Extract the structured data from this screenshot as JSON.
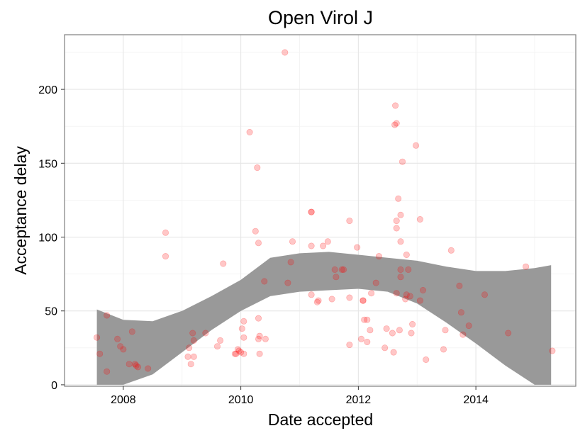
{
  "chart_data": {
    "type": "scatter",
    "title": "Open Virol J",
    "xlabel": "Date accepted",
    "ylabel": "Acceptance delay",
    "xlim": [
      2007.0,
      2015.7
    ],
    "ylim": [
      -1,
      237
    ],
    "x_ticks": [
      {
        "value": 2008,
        "label": "2008"
      },
      {
        "value": 2010,
        "label": "2010"
      },
      {
        "value": 2012,
        "label": "2012"
      },
      {
        "value": 2014,
        "label": "2014"
      }
    ],
    "y_ticks": [
      {
        "value": 0,
        "label": "0"
      },
      {
        "value": 50,
        "label": "50"
      },
      {
        "value": 100,
        "label": "100"
      },
      {
        "value": 150,
        "label": "150"
      },
      {
        "value": 200,
        "label": "200"
      }
    ],
    "grid": true,
    "point_color": "#ff0000",
    "band_color": "#999999",
    "points": [
      [
        2007.55,
        32
      ],
      [
        2007.6,
        21
      ],
      [
        2007.72,
        9
      ],
      [
        2007.72,
        47
      ],
      [
        2007.9,
        31
      ],
      [
        2007.95,
        26
      ],
      [
        2008.0,
        24
      ],
      [
        2008.1,
        14
      ],
      [
        2008.15,
        36
      ],
      [
        2008.2,
        14
      ],
      [
        2008.22,
        13
      ],
      [
        2008.25,
        12
      ],
      [
        2008.42,
        11
      ],
      [
        2008.72,
        103
      ],
      [
        2008.72,
        87
      ],
      [
        2009.1,
        19
      ],
      [
        2009.12,
        25
      ],
      [
        2009.15,
        14
      ],
      [
        2009.18,
        35
      ],
      [
        2009.2,
        30
      ],
      [
        2009.2,
        19
      ],
      [
        2009.4,
        35
      ],
      [
        2009.6,
        26
      ],
      [
        2009.65,
        30
      ],
      [
        2009.7,
        82
      ],
      [
        2009.9,
        21
      ],
      [
        2009.92,
        21
      ],
      [
        2009.95,
        24
      ],
      [
        2009.97,
        23
      ],
      [
        2010.0,
        22
      ],
      [
        2010.02,
        38
      ],
      [
        2010.05,
        21
      ],
      [
        2010.05,
        43
      ],
      [
        2010.05,
        32
      ],
      [
        2010.15,
        171
      ],
      [
        2010.25,
        104
      ],
      [
        2010.28,
        147
      ],
      [
        2010.3,
        96
      ],
      [
        2010.3,
        45
      ],
      [
        2010.3,
        31
      ],
      [
        2010.32,
        33
      ],
      [
        2010.32,
        21
      ],
      [
        2010.4,
        70
      ],
      [
        2010.42,
        31
      ],
      [
        2010.75,
        225
      ],
      [
        2010.8,
        69
      ],
      [
        2010.85,
        83
      ],
      [
        2010.88,
        97
      ],
      [
        2011.2,
        117
      ],
      [
        2011.2,
        117
      ],
      [
        2011.2,
        94
      ],
      [
        2011.2,
        61
      ],
      [
        2011.3,
        56
      ],
      [
        2011.32,
        57
      ],
      [
        2011.4,
        94
      ],
      [
        2011.48,
        97
      ],
      [
        2011.55,
        58
      ],
      [
        2011.6,
        78
      ],
      [
        2011.62,
        73
      ],
      [
        2011.72,
        78
      ],
      [
        2011.75,
        78
      ],
      [
        2011.85,
        111
      ],
      [
        2011.85,
        59
      ],
      [
        2011.85,
        27
      ],
      [
        2011.98,
        93
      ],
      [
        2012.05,
        31
      ],
      [
        2012.08,
        57
      ],
      [
        2012.08,
        57
      ],
      [
        2012.1,
        44
      ],
      [
        2012.15,
        29
      ],
      [
        2012.15,
        44
      ],
      [
        2012.2,
        37
      ],
      [
        2012.22,
        62
      ],
      [
        2012.3,
        69
      ],
      [
        2012.35,
        87
      ],
      [
        2012.45,
        25
      ],
      [
        2012.48,
        38
      ],
      [
        2012.58,
        35
      ],
      [
        2012.6,
        22
      ],
      [
        2012.62,
        176
      ],
      [
        2012.63,
        189
      ],
      [
        2012.65,
        177
      ],
      [
        2012.65,
        106
      ],
      [
        2012.65,
        111
      ],
      [
        2012.65,
        62
      ],
      [
        2012.68,
        126
      ],
      [
        2012.7,
        37
      ],
      [
        2012.72,
        115
      ],
      [
        2012.72,
        97
      ],
      [
        2012.72,
        78
      ],
      [
        2012.72,
        73
      ],
      [
        2012.75,
        151
      ],
      [
        2012.8,
        58
      ],
      [
        2012.82,
        88
      ],
      [
        2012.82,
        61
      ],
      [
        2012.85,
        78
      ],
      [
        2012.88,
        60
      ],
      [
        2012.9,
        35
      ],
      [
        2012.92,
        41
      ],
      [
        2012.98,
        162
      ],
      [
        2013.05,
        112
      ],
      [
        2013.05,
        57
      ],
      [
        2013.1,
        64
      ],
      [
        2013.15,
        17
      ],
      [
        2013.45,
        24
      ],
      [
        2013.48,
        37
      ],
      [
        2013.58,
        91
      ],
      [
        2013.72,
        67
      ],
      [
        2013.75,
        49
      ],
      [
        2013.78,
        34
      ],
      [
        2013.88,
        40
      ],
      [
        2014.15,
        61
      ],
      [
        2014.55,
        35
      ],
      [
        2014.85,
        80
      ],
      [
        2015.3,
        23
      ]
    ],
    "smooth_band": {
      "x": [
        2007.55,
        2008.0,
        2008.5,
        2009.0,
        2009.5,
        2010.0,
        2010.5,
        2011.0,
        2011.5,
        2012.0,
        2012.5,
        2013.0,
        2013.5,
        2014.0,
        2014.5,
        2015.0,
        2015.28
      ],
      "upper": [
        51,
        44,
        43,
        50,
        60,
        71,
        86,
        89,
        90,
        88,
        86,
        84,
        80,
        77,
        77,
        79,
        81
      ],
      "lower": [
        0,
        0,
        7,
        22,
        37,
        50,
        60,
        63,
        64,
        65,
        63,
        55,
        42,
        28,
        13,
        0,
        0
      ]
    }
  }
}
